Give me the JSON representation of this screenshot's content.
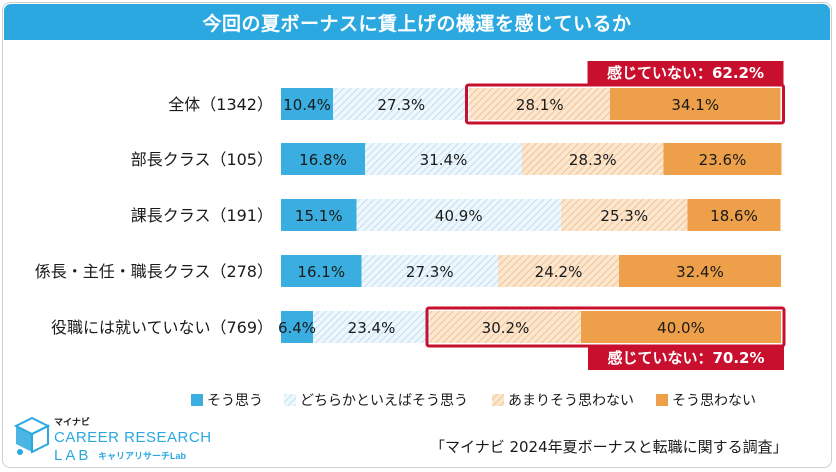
{
  "title": "今回の夏ボーナスに賃上げの機運を感じているか",
  "chart_data": {
    "type": "bar",
    "orientation": "horizontal",
    "stacked": true,
    "percent_stacked": true,
    "categories": [
      "全体（1342）",
      "部長クラス（105）",
      "課長クラス（191）",
      "係長・主任・職長クラス（278）",
      "役職には就いていない（769）"
    ],
    "series": [
      {
        "name": "そう思う",
        "color": "#3aaee0",
        "pattern": "solid",
        "values": [
          10.4,
          16.8,
          15.1,
          16.1,
          6.4
        ]
      },
      {
        "name": "どちらかといえばそう思う",
        "color": "#d9eef8",
        "pattern": "hatch-blue",
        "values": [
          27.3,
          31.4,
          40.9,
          27.3,
          23.4
        ]
      },
      {
        "name": "あまりそう思わない",
        "color": "#f5d2a8",
        "pattern": "hatch-orange",
        "values": [
          28.1,
          28.3,
          25.3,
          24.2,
          30.2
        ]
      },
      {
        "name": "そう思わない",
        "color": "#ee9f4a",
        "pattern": "solid",
        "values": [
          34.1,
          23.6,
          18.6,
          32.4,
          40.0
        ]
      }
    ],
    "value_labels": [
      [
        "10.4%",
        "27.3%",
        "28.1%",
        "34.1%"
      ],
      [
        "16.8%",
        "31.4%",
        "28.3%",
        "23.6%"
      ],
      [
        "15.1%",
        "40.9%",
        "25.3%",
        "18.6%"
      ],
      [
        "16.1%",
        "27.3%",
        "24.2%",
        "32.4%"
      ],
      [
        "6.4%",
        "23.4%",
        "30.2%",
        "40.0%"
      ]
    ],
    "xlim": [
      0,
      100
    ],
    "legend_position": "bottom",
    "annotations": [
      {
        "row": 0,
        "text": "感じていない：62.2%",
        "placement": "above",
        "highlight_series": [
          2,
          3
        ]
      },
      {
        "row": 4,
        "text": "感じていない：70.2%",
        "placement": "below",
        "highlight_series": [
          2,
          3
        ]
      }
    ]
  },
  "logo": {
    "small": "マイナビ",
    "line1": "CAREER RESEARCH",
    "line2": "LAB",
    "sub": "キャリアリサーチLab"
  },
  "source": "「マイナビ 2024年夏ボーナスと転職に関する調査」",
  "colors": {
    "title_bg": "#2ba8df",
    "highlight": "#c8102e",
    "logo_blue": "#2ba8df"
  }
}
